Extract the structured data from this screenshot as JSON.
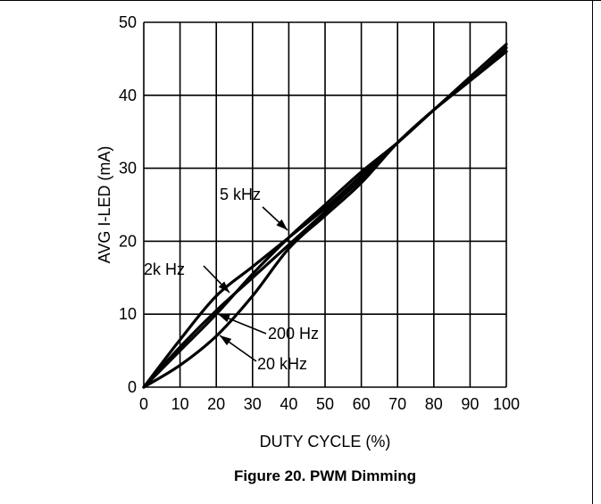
{
  "chart_data": {
    "type": "line",
    "title": "",
    "caption": "Figure 20. PWM Dimming",
    "xlabel": "DUTY CYCLE (%)",
    "ylabel": "AVG I-LED (mA)",
    "xlim": [
      0,
      100
    ],
    "ylim": [
      0,
      50
    ],
    "xticks": [
      0,
      10,
      20,
      30,
      40,
      50,
      60,
      70,
      80,
      90,
      100
    ],
    "yticks": [
      0,
      10,
      20,
      30,
      40,
      50
    ],
    "grid": true,
    "legend": "none",
    "line_color": "#000000",
    "series": [
      {
        "name": "5 kHz",
        "x": [
          0,
          10,
          20,
          30,
          40,
          50,
          60,
          70,
          80,
          90,
          100
        ],
        "y": [
          0,
          5,
          10,
          15.5,
          20.5,
          25,
          29.5,
          33.5,
          38,
          42.5,
          47
        ]
      },
      {
        "name": "2k Hz",
        "x": [
          0,
          10,
          20,
          30,
          40,
          50,
          60,
          70,
          80,
          90,
          100
        ],
        "y": [
          0,
          6.5,
          12.5,
          16.5,
          20.5,
          24.5,
          29,
          33.5,
          38,
          42,
          46.5
        ]
      },
      {
        "name": "200 Hz",
        "x": [
          0,
          10,
          20,
          30,
          40,
          50,
          60,
          70,
          80,
          90,
          100
        ],
        "y": [
          0,
          5.5,
          10.5,
          15,
          19.5,
          24,
          28.5,
          33.5,
          38,
          42,
          46
        ]
      },
      {
        "name": "20 kHz",
        "x": [
          0,
          10,
          20,
          30,
          40,
          50,
          60,
          70,
          80,
          90,
          100
        ],
        "y": [
          0,
          3,
          7,
          12.5,
          19,
          23.5,
          28,
          33.5,
          38,
          42,
          46
        ]
      }
    ],
    "annotations": [
      {
        "series": 0,
        "text": "5 kHz",
        "at": [
          40,
          21
        ]
      },
      {
        "series": 1,
        "text": "2k Hz",
        "at": [
          22.5,
          13.5
        ]
      },
      {
        "series": 2,
        "text": "200 Hz",
        "at": [
          21,
          10
        ]
      },
      {
        "series": 3,
        "text": "20 kHz",
        "at": [
          22,
          8
        ]
      }
    ]
  }
}
